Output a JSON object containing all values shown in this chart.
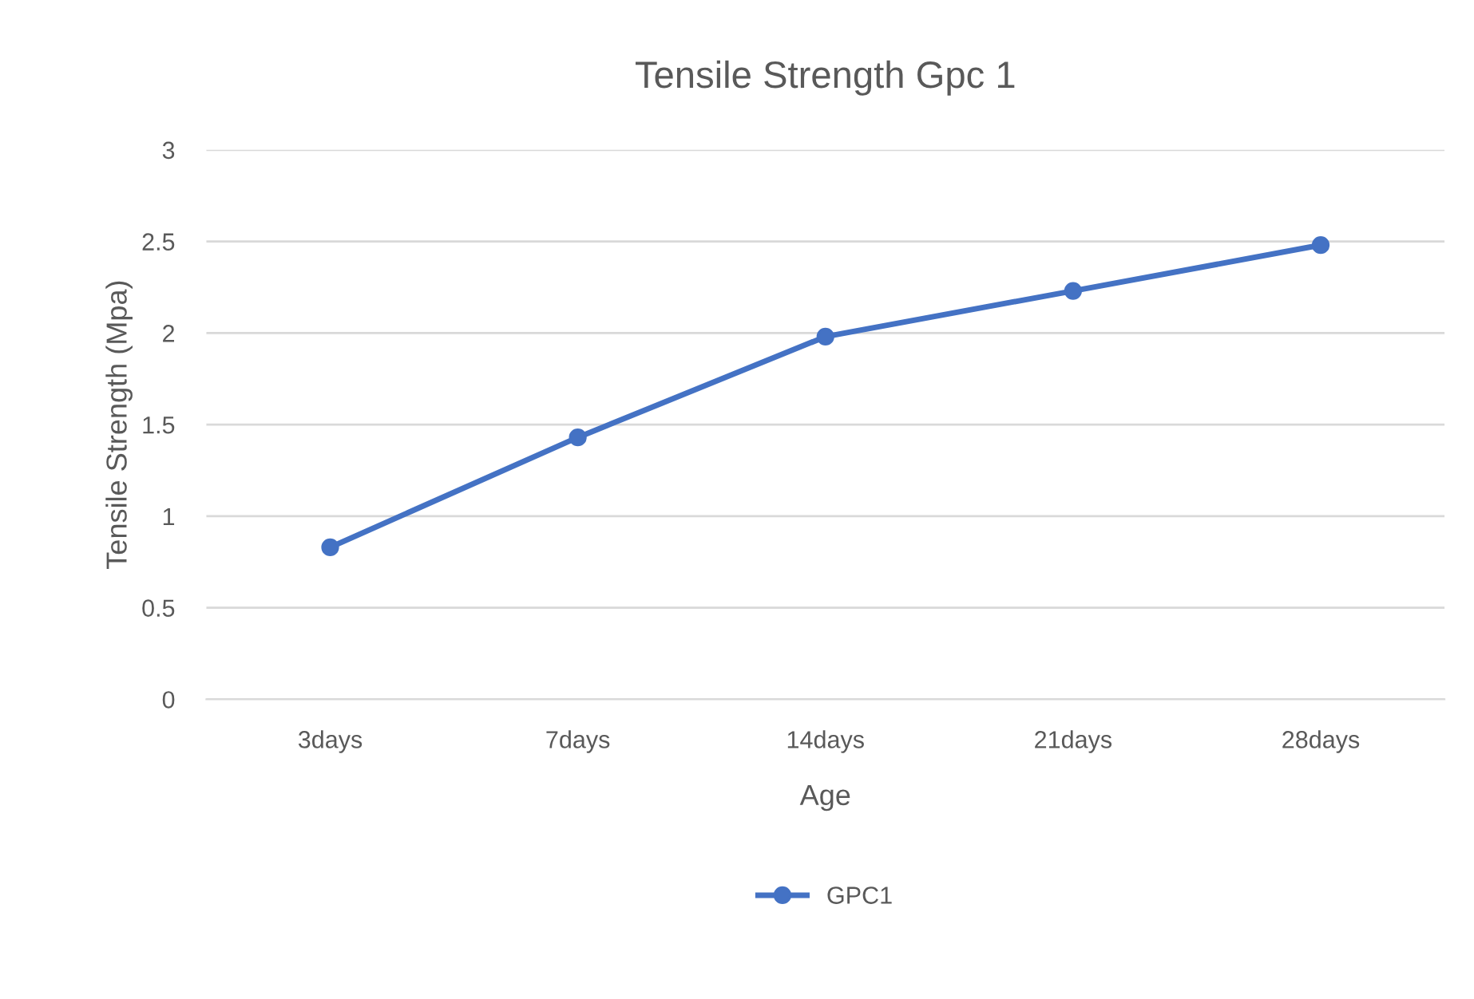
{
  "chart_data": {
    "type": "line",
    "title": "Tensile Strength Gpc 1",
    "xlabel": "Age",
    "ylabel": "Tensile Strength (Mpa)",
    "categories": [
      "3days",
      "7days",
      "14days",
      "21days",
      "28days"
    ],
    "series": [
      {
        "name": "GPC1",
        "color": "#4472c4",
        "values": [
          0.83,
          1.43,
          1.98,
          2.23,
          2.48
        ]
      }
    ],
    "ylim": [
      0,
      3
    ],
    "yticks": [
      0,
      0.5,
      1,
      1.5,
      2,
      2.5,
      3
    ],
    "grid": "y",
    "legend": "bottom",
    "marker": "circle",
    "line_style": "solid"
  }
}
